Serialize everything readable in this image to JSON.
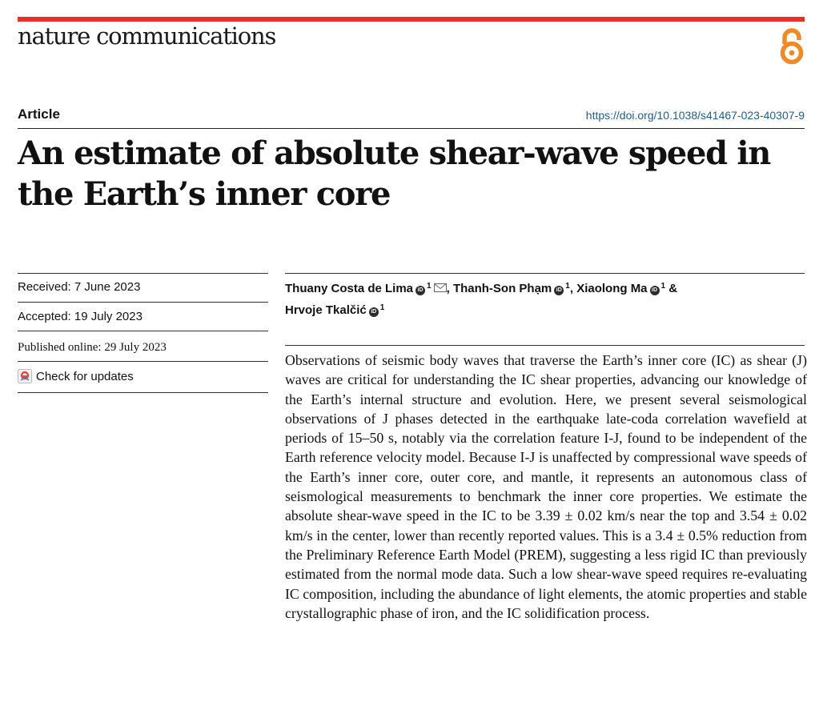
{
  "header": {
    "journal": "nature communications",
    "open_access_icon": "open-access-icon",
    "accent_color": "#e8312a"
  },
  "article": {
    "section_label": "Article",
    "doi": "https://doi.org/10.1038/s41467-023-40307-9",
    "title": "An estimate of absolute shear-wave speed in the Earth’s inner core"
  },
  "dates": {
    "received": "Received: 7 June 2023",
    "accepted": "Accepted: 19 July 2023",
    "published": "Published online: 29 July 2023"
  },
  "check_updates": {
    "label": "Check for updates",
    "icon": "crossmark-icon"
  },
  "authors": [
    {
      "name": "Thuany Costa de Lima",
      "affiliation": "1",
      "corresponding": true,
      "separator": ", "
    },
    {
      "name": "Thanh-Son Phạm",
      "affiliation": "1",
      "corresponding": false,
      "separator": ", "
    },
    {
      "name": "Xiaolong Ma",
      "affiliation": "1",
      "corresponding": false,
      "separator": " &"
    },
    {
      "name": "Hrvoje Tkalčić",
      "affiliation": "1",
      "corresponding": false,
      "separator": ""
    }
  ],
  "orcid_glyph": "iD",
  "abstract": "Observations of seismic body waves that traverse the Earth’s inner core (IC) as shear (J) waves are critical for understanding the IC shear properties, advancing our knowledge of the Earth’s internal structure and evolution. Here, we present several seismological observations of J phases detected in the earthquake late-coda correlation wavefield at periods of 15–50 s, notably via the correlation feature I-J, found to be independent of the Earth reference velocity model. Because I-J is unaffected by compressional wave speeds of the Earth’s inner core, outer core, and mantle, it represents an autonomous class of seismological measurements to benchmark the inner core properties. We estimate the absolute shear-wave speed in the IC to be 3.39 ± 0.02 km/s near the top and 3.54 ± 0.02 km/s in the center, lower than recently reported values. This is a 3.4 ± 0.5% reduction from the Preliminary Reference Earth Model (PREM), suggesting a less rigid IC than previously estimated from the normal mode data. Such a low shear-wave speed requires re-evaluating IC composition, including the abundance of light elements, the atomic properties and stable crystallographic phase of iron, and the IC solidification process."
}
